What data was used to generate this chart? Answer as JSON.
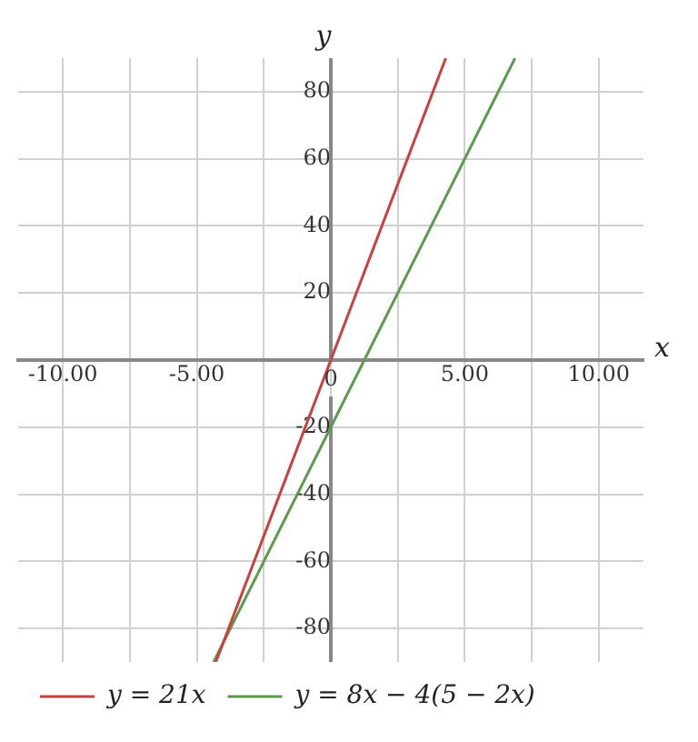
{
  "chart_data": {
    "type": "line",
    "xlabel": "x",
    "ylabel": "y",
    "xlim": [
      -11.67,
      11.67
    ],
    "ylim": [
      -90,
      90
    ],
    "xticks": [
      {
        "value": -10,
        "label": "-10.00"
      },
      {
        "value": -7.5,
        "label": null
      },
      {
        "value": -5,
        "label": "-5.00"
      },
      {
        "value": -2.5,
        "label": null
      },
      0,
      {
        "value": 2.5,
        "label": null
      },
      {
        "value": 5,
        "label": "5.00"
      },
      {
        "value": 7.5,
        "label": null
      },
      {
        "value": 10,
        "label": "10.00"
      }
    ],
    "yticks": [
      -80,
      -60,
      -40,
      -20,
      {
        "value": 0,
        "label": null
      },
      20,
      40,
      60,
      80
    ],
    "grid": true,
    "legend": "bottom left",
    "marker": "none",
    "line_style": "solid",
    "series": [
      {
        "name": "y = 21x",
        "color": "#cc3f3f",
        "x": [
          -4.29,
          0,
          4.29
        ],
        "values": [
          -90,
          0,
          90
        ]
      },
      {
        "name": "y = 8x − 4(5 − 2x)",
        "color": "#5b9a4f",
        "x": [
          -4.375,
          0,
          6.875
        ],
        "values": [
          -90,
          -20,
          90
        ]
      }
    ]
  }
}
